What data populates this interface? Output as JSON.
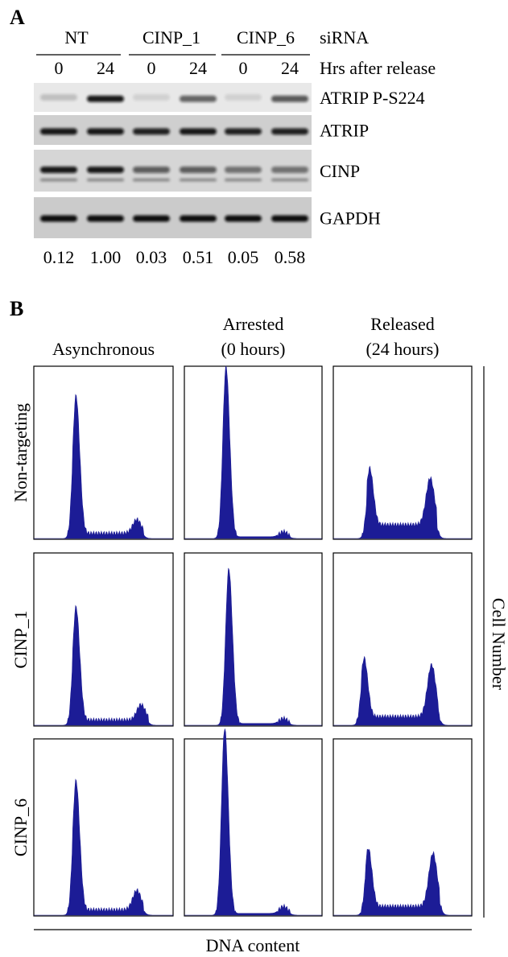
{
  "panel_a": {
    "label": "A",
    "group_header": "siRNA",
    "groups": [
      "NT",
      "CINP_1",
      "CINP_6"
    ],
    "time_header": "Hrs after release",
    "times": [
      "0",
      "24",
      "0",
      "24",
      "0",
      "24"
    ],
    "blots": [
      "ATRIP P-S224",
      "ATRIP",
      "CINP",
      "GAPDH"
    ],
    "quantification": [
      "0.12",
      "1.00",
      "0.03",
      "0.51",
      "0.05",
      "0.58"
    ]
  },
  "panel_b": {
    "label": "B",
    "columns": [
      [
        "Asynchronous"
      ],
      [
        "Arrested",
        "(0 hours)"
      ],
      [
        "Released",
        "(24 hours)"
      ]
    ],
    "rows": [
      "Non-targeting",
      "CINP_1",
      "CINP_6"
    ],
    "y_axis": "Cell Number",
    "x_axis": "DNA content"
  }
}
